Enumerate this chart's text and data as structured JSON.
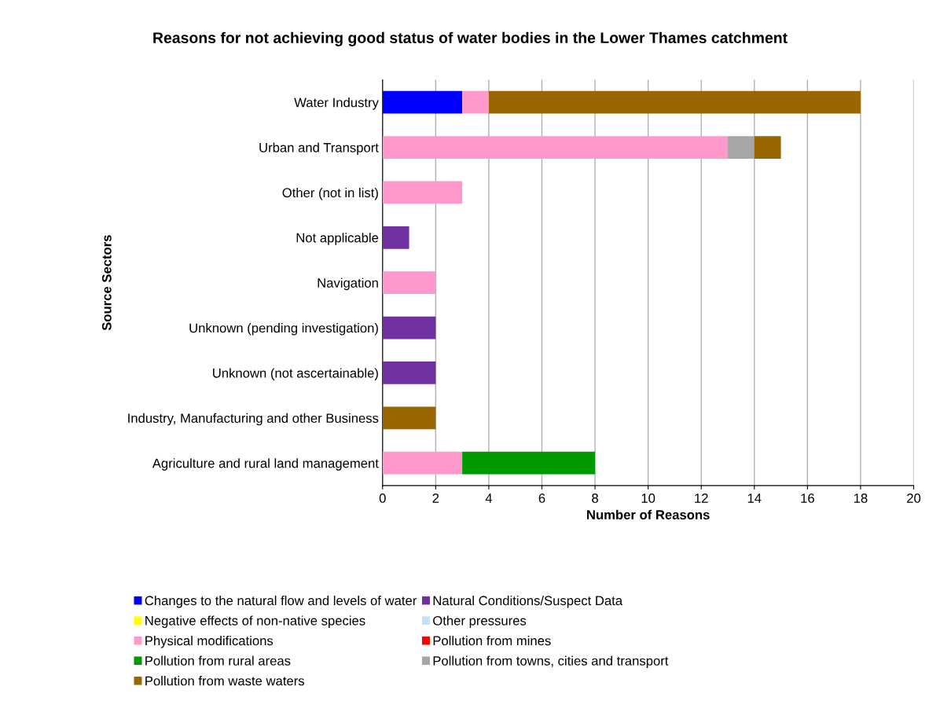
{
  "chart_data": {
    "type": "bar",
    "orientation": "horizontal",
    "stacked": true,
    "title": "Reasons for not achieving good status of water bodies in the Lower Thames catchment",
    "xlabel": "Number of Reasons",
    "ylabel": "Source Sectors",
    "categories": [
      "Water Industry",
      "Urban and Transport",
      "Other (not in list)",
      "Not applicable",
      "Navigation",
      "Unknown (pending investigation)",
      "Unknown (not ascertainable)",
      "Industry, Manufacturing and other Business",
      "Agriculture and rural land management"
    ],
    "series": [
      {
        "name": "Changes to the natural flow and levels of water",
        "color": "#0000ff",
        "values": [
          3,
          null,
          null,
          null,
          null,
          null,
          null,
          null,
          null
        ]
      },
      {
        "name": "Natural Conditions/Suspect Data",
        "color": "#7030a0",
        "values": [
          null,
          null,
          null,
          1,
          null,
          2,
          2,
          null,
          null
        ]
      },
      {
        "name": "Negative effects of non-native species",
        "color": "#ffff00",
        "values": [
          null,
          null,
          null,
          null,
          null,
          null,
          null,
          null,
          null
        ]
      },
      {
        "name": "Other pressures",
        "color": "#c6e2f2",
        "values": [
          null,
          null,
          null,
          null,
          null,
          null,
          null,
          null,
          null
        ]
      },
      {
        "name": "Physical modifications",
        "color": "#ff99cc",
        "values": [
          1,
          13,
          3,
          null,
          2,
          null,
          null,
          null,
          3
        ]
      },
      {
        "name": "Pollution from mines",
        "color": "#ff0000",
        "values": [
          null,
          null,
          null,
          null,
          null,
          null,
          null,
          null,
          null
        ]
      },
      {
        "name": "Pollution from rural areas",
        "color": "#009a00",
        "values": [
          null,
          null,
          null,
          null,
          null,
          null,
          null,
          null,
          5
        ]
      },
      {
        "name": "Pollution from towns, cities and transport",
        "color": "#a6a6a6",
        "values": [
          null,
          1,
          null,
          null,
          null,
          null,
          null,
          null,
          null
        ]
      },
      {
        "name": "Pollution from waste waters",
        "color": "#996600",
        "values": [
          14,
          1,
          null,
          null,
          null,
          null,
          null,
          2,
          null
        ]
      }
    ],
    "xlim": [
      0,
      20
    ],
    "xticks": [
      0,
      2,
      4,
      6,
      8,
      10,
      12,
      14,
      16,
      18,
      20
    ],
    "grid": "x",
    "legend": "bottom"
  }
}
